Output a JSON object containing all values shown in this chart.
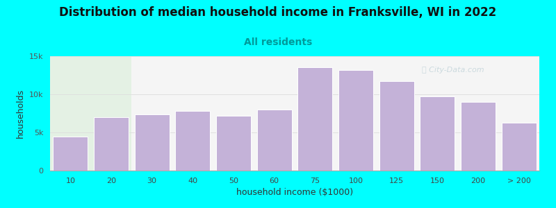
{
  "title": "Distribution of median household income in Franksville, WI in 2022",
  "subtitle": "All residents",
  "xlabel": "household income ($1000)",
  "ylabel": "households",
  "background_color": "#00FFFF",
  "bar_color": "#c4b2d8",
  "bar_edge_color": "#ffffff",
  "categories": [
    "10",
    "20",
    "30",
    "40",
    "50",
    "60",
    "75",
    "100",
    "125",
    "150",
    "200",
    "> 200"
  ],
  "values": [
    4500,
    7000,
    7400,
    7800,
    7200,
    8000,
    13500,
    13200,
    11700,
    9700,
    9000,
    6300
  ],
  "ylim": [
    0,
    15000
  ],
  "yticks": [
    0,
    5000,
    10000,
    15000
  ],
  "ytick_labels": [
    "0",
    "5k",
    "10k",
    "15k"
  ],
  "title_fontsize": 12,
  "subtitle_fontsize": 10,
  "axis_label_fontsize": 9,
  "tick_fontsize": 8,
  "watermark_text": "City-Data.com",
  "watermark_color": "#aac4cc",
  "watermark_alpha": 0.55,
  "plot_left_bg": "#e0f0e0",
  "plot_right_bg": "#f5f5f5"
}
